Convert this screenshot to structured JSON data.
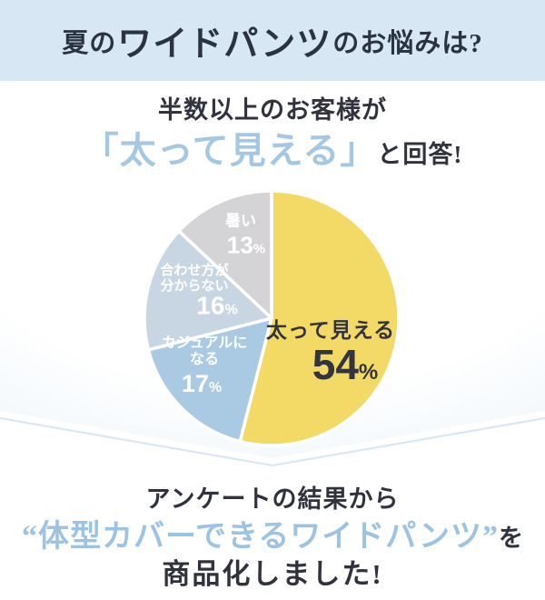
{
  "header": {
    "title_prefix": "夏の",
    "title_emphasis": "ワイドパンツ",
    "title_suffix": "のお悩みは?"
  },
  "survey": {
    "lead_line": "半数以上のお客様が",
    "highlight_quote": "「太って見える」",
    "lead_tail": "と回答!"
  },
  "chart_data": {
    "type": "pie",
    "title": "夏のワイドパンツのお悩みアンケート結果",
    "unit": "%",
    "start_angle": "12時の位置から時計回り",
    "slices": [
      {
        "label": "太って見える",
        "value": 54,
        "color": "#f3d966"
      },
      {
        "label": "カジュアルになる",
        "value": 17,
        "color": "#aac9e2"
      },
      {
        "label": "合わせ方が分からない",
        "value": 16,
        "color": "#c8d6e4"
      },
      {
        "label": "暑い",
        "value": 13,
        "color": "#d4d4d6"
      }
    ]
  },
  "pie_labels": {
    "futotte": {
      "name": "太って見える",
      "num": "54",
      "sym": "%"
    },
    "casual": {
      "line1": "カジュアルに",
      "line2": "なる",
      "num": "17",
      "sym": "%"
    },
    "awase": {
      "line1": "合わせ方が",
      "line2": "分からない",
      "num": "16",
      "sym": "%"
    },
    "atsui": {
      "name": "暑い",
      "num": "13",
      "sym": "%"
    }
  },
  "footer": {
    "line1": "アンケートの結果から",
    "quote_open": "“",
    "highlight": "体型カバーできるワイドパンツ",
    "quote_close": "”",
    "tail": "を",
    "line3": "商品化しました!"
  },
  "colors": {
    "band_bg": "#d7e8f4",
    "dark_navy_text": "#30333e",
    "light_blue_accent": "#a4c8e4",
    "chevron_line": "#d6e6f2",
    "slice_gap": "#ffffff"
  }
}
